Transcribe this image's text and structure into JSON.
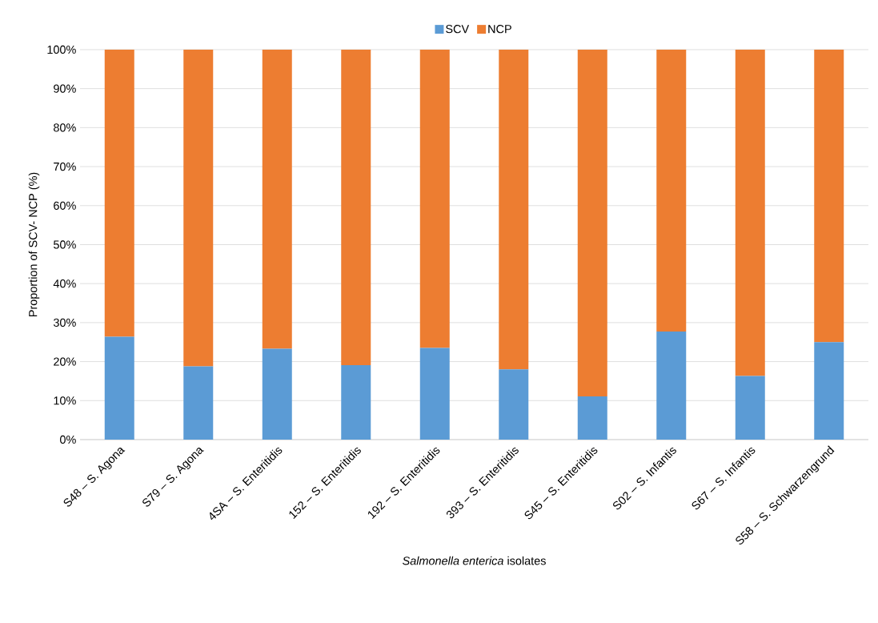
{
  "chart_data": {
    "type": "bar",
    "stacked": true,
    "xlabel": "*Salmonella enterica* isolates",
    "ylabel": "Proportion of SCV- NCP (%)",
    "categories": [
      "S48 – S. Agona",
      "S79 – S. Agona",
      "4SA – S. Enteritidis",
      "152 – S. Enteritidis",
      "192 – S. Enteritidis",
      "393 – S. Enteritidis",
      "S45 – S. Enteritidis",
      "S02 – S. Infantis",
      "S67 – S. Infantis",
      "S58 – S. Schwarzengrund"
    ],
    "series": [
      {
        "name": "SCV",
        "color": "#5b9bd5",
        "values": [
          26.4,
          18.8,
          23.3,
          19.1,
          23.5,
          18.0,
          11.1,
          27.7,
          16.3,
          25.0
        ]
      },
      {
        "name": "NCP",
        "color": "#ed7d31",
        "values": [
          73.6,
          81.2,
          76.7,
          80.9,
          76.5,
          82.0,
          88.9,
          72.3,
          83.7,
          75.0
        ]
      }
    ],
    "ylim": [
      0,
      100
    ],
    "yticks": [
      {
        "value": 0,
        "label": "0%"
      },
      {
        "value": 10,
        "label": "10%"
      },
      {
        "value": 20,
        "label": "20%"
      },
      {
        "value": 30,
        "label": "30%"
      },
      {
        "value": 40,
        "label": "40%"
      },
      {
        "value": 50,
        "label": "50%"
      },
      {
        "value": 60,
        "label": "60%"
      },
      {
        "value": 70,
        "label": "70%"
      },
      {
        "value": 80,
        "label": "80%"
      },
      {
        "value": 90,
        "label": "90%"
      },
      {
        "value": 100,
        "label": "100%"
      }
    ],
    "grid": "y",
    "legend": "top"
  }
}
